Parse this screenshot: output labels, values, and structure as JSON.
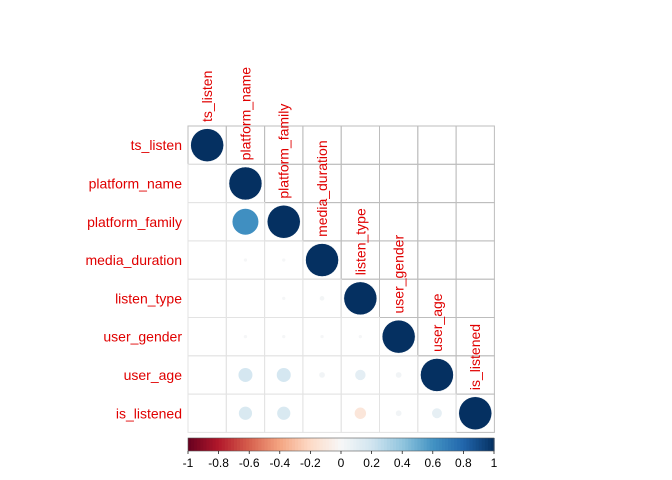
{
  "chart_data": {
    "type": "heatmap",
    "variables": [
      "ts_listen",
      "platform_name",
      "platform_family",
      "media_duration",
      "listen_type",
      "user_gender",
      "user_age",
      "is_listened"
    ],
    "matrix": [
      [
        1.0,
        0.0,
        0.0,
        0.0,
        0.0,
        0.0,
        0.0,
        0.0
      ],
      [
        0.0,
        1.0,
        0.62,
        0.01,
        0.0,
        0.01,
        0.18,
        0.16
      ],
      [
        0.0,
        0.62,
        1.0,
        0.01,
        0.01,
        0.01,
        0.18,
        0.16
      ],
      [
        0.0,
        0.01,
        0.01,
        1.0,
        0.02,
        0.01,
        0.03,
        0.0
      ],
      [
        0.0,
        0.0,
        0.01,
        0.02,
        1.0,
        0.01,
        0.1,
        -0.12
      ],
      [
        0.0,
        0.01,
        0.01,
        0.01,
        0.01,
        1.0,
        0.03,
        0.03
      ],
      [
        0.0,
        0.18,
        0.18,
        0.03,
        0.1,
        0.03,
        1.0,
        0.09
      ],
      [
        0.0,
        0.16,
        0.16,
        0.0,
        -0.12,
        0.03,
        0.09,
        1.0
      ]
    ],
    "colorbar": {
      "ticks": [
        "-1",
        "-0.8",
        "-0.6",
        "-0.4",
        "-0.2",
        "0",
        "0.2",
        "0.4",
        "0.6",
        "0.8",
        "1"
      ],
      "range": [
        -1,
        1
      ]
    },
    "colors": {
      "negative": "#67001f",
      "zero": "#f7f7f7",
      "positive": "#053061",
      "labels": "#e00000",
      "grid": "#bdbdbd"
    },
    "shape": "upper-triangle-circles"
  }
}
